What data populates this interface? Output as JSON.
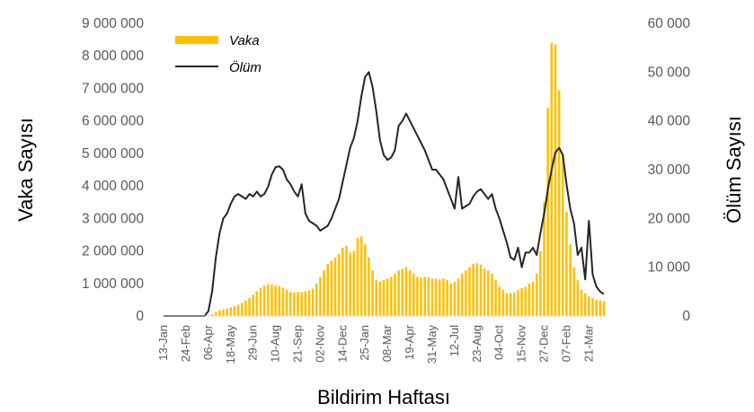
{
  "chart_data": {
    "type": "bar+line",
    "xlabel": "Bildirim Haftası",
    "ylabel_left": "Vaka Sayısı",
    "ylabel_right": "Ölüm Sayısı",
    "ylim_left": [
      0,
      9000000
    ],
    "ylim_right": [
      0,
      60000
    ],
    "yticks_left": [
      "0",
      "1 000 000",
      "2 000 000",
      "3 000 000",
      "4 000 000",
      "5 000 000",
      "6 000 000",
      "7 000 000",
      "8 000 000",
      "9 000 000"
    ],
    "yticks_right": [
      "0",
      "10 000",
      "20 000",
      "30 000",
      "40 000",
      "50 000",
      "60 000"
    ],
    "x_tick_labels": [
      "13-Jan",
      "24-Feb",
      "06-Apr",
      "18-May",
      "29-Jun",
      "10-Aug",
      "21-Sep",
      "02-Nov",
      "14-Dec",
      "25-Jan",
      "08-Mar",
      "19-Apr",
      "31-May",
      "12-Jul",
      "23-Aug",
      "04-Oct",
      "15-Nov",
      "27-Dec",
      "07-Feb",
      "21-Mar"
    ],
    "legend": {
      "position": "top-left",
      "entries": [
        {
          "name": "Vaka",
          "kind": "bar",
          "color": "#FFC000"
        },
        {
          "name": "Ölüm",
          "kind": "line",
          "color": "#262626"
        }
      ]
    },
    "series": [
      {
        "name": "Vaka",
        "axis": "left",
        "type": "bar",
        "color": "#FFC000",
        "values": [
          0,
          0,
          0,
          0,
          0,
          0,
          0,
          0,
          0,
          0,
          0,
          0,
          20000,
          60000,
          120000,
          180000,
          200000,
          230000,
          260000,
          300000,
          340000,
          400000,
          470000,
          550000,
          650000,
          760000,
          860000,
          930000,
          980000,
          970000,
          940000,
          920000,
          870000,
          810000,
          740000,
          720000,
          740000,
          740000,
          760000,
          790000,
          840000,
          1000000,
          1200000,
          1400000,
          1600000,
          1700000,
          1800000,
          1900000,
          2100000,
          2150000,
          1950000,
          2000000,
          2400000,
          2450000,
          2200000,
          1800000,
          1400000,
          1100000,
          1050000,
          1100000,
          1150000,
          1200000,
          1300000,
          1400000,
          1450000,
          1500000,
          1400000,
          1300000,
          1200000,
          1180000,
          1200000,
          1180000,
          1150000,
          1150000,
          1120000,
          1150000,
          1100000,
          1000000,
          1050000,
          1150000,
          1300000,
          1400000,
          1500000,
          1600000,
          1620000,
          1580000,
          1450000,
          1400000,
          1300000,
          1100000,
          900000,
          800000,
          700000,
          700000,
          720000,
          800000,
          850000,
          900000,
          1000000,
          1050000,
          1300000,
          2000000,
          3500000,
          6400000,
          8400000,
          8350000,
          6950000,
          5000000,
          3200000,
          2200000,
          1500000,
          1100000,
          800000,
          700000,
          600000,
          550000,
          500000,
          480000,
          450000
        ]
      },
      {
        "name": "Ölüm",
        "axis": "right",
        "type": "line",
        "color": "#262626",
        "values": [
          0,
          0,
          0,
          0,
          0,
          0,
          0,
          0,
          0,
          0,
          0,
          0,
          1000,
          5000,
          12000,
          17000,
          20000,
          21000,
          23000,
          24500,
          25000,
          24500,
          24000,
          25000,
          24500,
          25500,
          24500,
          25000,
          26500,
          29000,
          30500,
          30700,
          30000,
          28000,
          27000,
          25500,
          24500,
          27000,
          21000,
          19500,
          19000,
          18500,
          17500,
          18000,
          18500,
          20000,
          22000,
          24000,
          27500,
          31000,
          34500,
          36500,
          40000,
          45000,
          49000,
          50000,
          47000,
          42000,
          36000,
          33000,
          32000,
          32500,
          34000,
          39000,
          40000,
          41500,
          40000,
          38500,
          37000,
          35500,
          34000,
          32000,
          30000,
          30000,
          29000,
          28000,
          26000,
          24000,
          22000,
          28500,
          22000,
          22500,
          23000,
          24500,
          25500,
          26000,
          25000,
          24000,
          25000,
          22000,
          20000,
          17500,
          15000,
          12000,
          11500,
          14000,
          10000,
          13000,
          13000,
          14000,
          12500,
          17000,
          21000,
          26000,
          30000,
          33500,
          34500,
          33000,
          27000,
          22000,
          19000,
          12500,
          14000,
          7500,
          19500,
          8500,
          6000,
          5000,
          4500
        ]
      }
    ]
  }
}
